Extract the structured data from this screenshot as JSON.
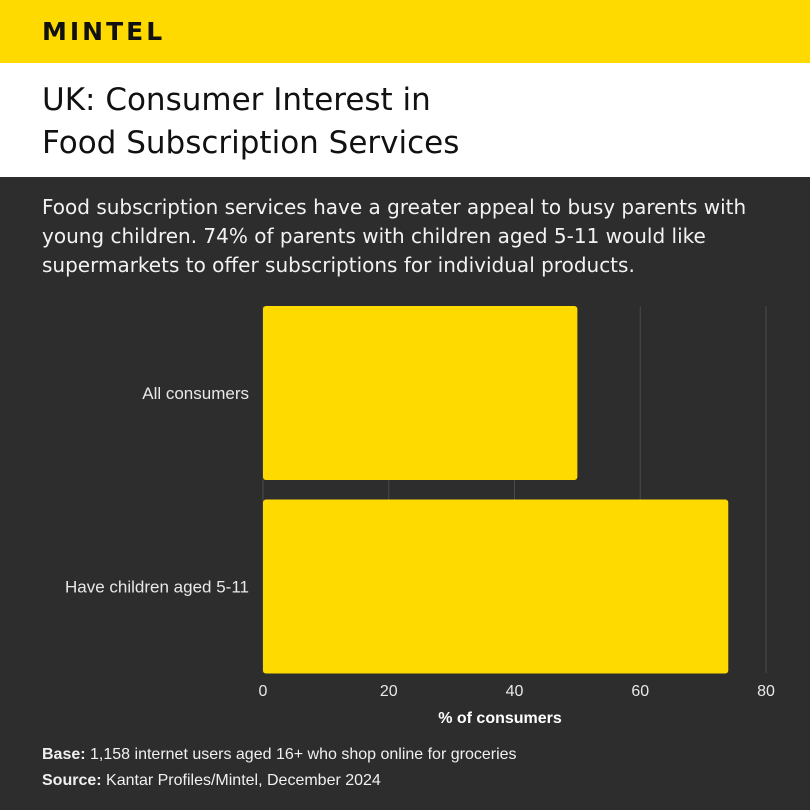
{
  "brand": {
    "logo_text": "MINTEL",
    "accent": "#ffda00",
    "background": "#2d2d2d"
  },
  "title_lines": [
    "UK: Consumer Interest in",
    "Food Subscription Services"
  ],
  "subtitle": "Food subscription services have a greater appeal to busy parents with young children. 74% of parents with children aged 5-11 would like supermarkets to offer subscriptions for individual products.",
  "chart_data": {
    "type": "bar",
    "orientation": "horizontal",
    "categories": [
      "All consumers",
      "Have children aged 5-11"
    ],
    "values": [
      50,
      74
    ],
    "xlabel": "% of consumers",
    "ylabel": "",
    "xlim": [
      0,
      80
    ],
    "xticks": [
      0,
      20,
      40,
      60,
      80
    ],
    "grid": true,
    "bar_color": "#ffda00"
  },
  "footer": {
    "base_label": "Base:",
    "base_text": "1,158 internet users aged 16+ who shop online for groceries",
    "source_label": "Source:",
    "source_text": "Kantar Profiles/Mintel, December 2024"
  }
}
